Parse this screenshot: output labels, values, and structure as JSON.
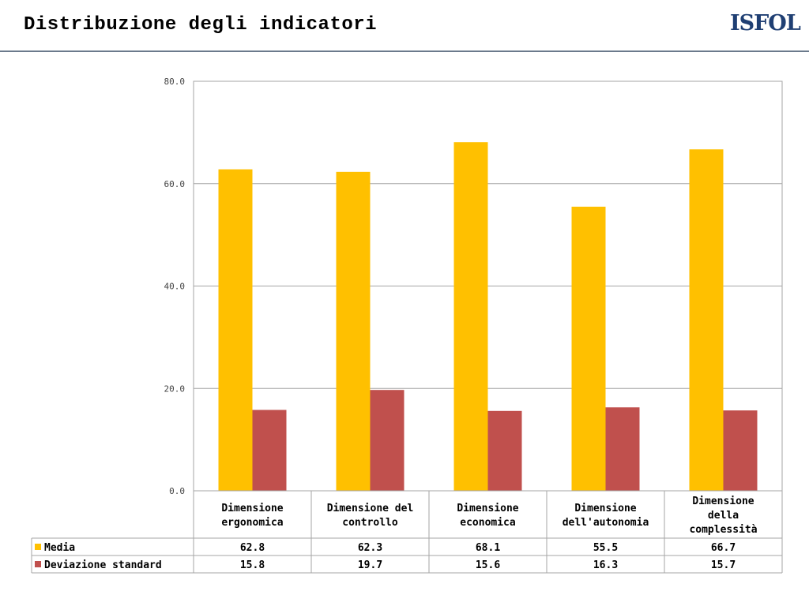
{
  "slide": {
    "title": "Distribuzione degli indicatori",
    "logo_text": "ISFOL"
  },
  "chart_data": {
    "type": "bar",
    "title": "",
    "xlabel": "",
    "ylabel": "",
    "ylim": [
      0,
      80
    ],
    "y_ticks": [
      "0.0",
      "20.0",
      "40.0",
      "60.0",
      "80.0"
    ],
    "grid": true,
    "legend_placement": "data-table",
    "categories": [
      [
        "Dimensione",
        "ergonomica"
      ],
      [
        "Dimensione del",
        "controllo"
      ],
      [
        "Dimensione",
        "economica"
      ],
      [
        "Dimensione",
        "dell'autonomia"
      ],
      [
        "Dimensione",
        "della",
        "complessità"
      ]
    ],
    "series": [
      {
        "name": "Media",
        "color": "#ffc000",
        "values": [
          62.8,
          62.3,
          68.1,
          55.5,
          66.7
        ],
        "labels": [
          "62.8",
          "62.3",
          "68.1",
          "55.5",
          "66.7"
        ]
      },
      {
        "name": "Deviazione standard",
        "color": "#c0504d",
        "values": [
          15.8,
          19.7,
          15.6,
          16.3,
          15.7
        ],
        "labels": [
          "15.8",
          "19.7",
          "15.6",
          "16.3",
          "15.7"
        ]
      }
    ]
  }
}
